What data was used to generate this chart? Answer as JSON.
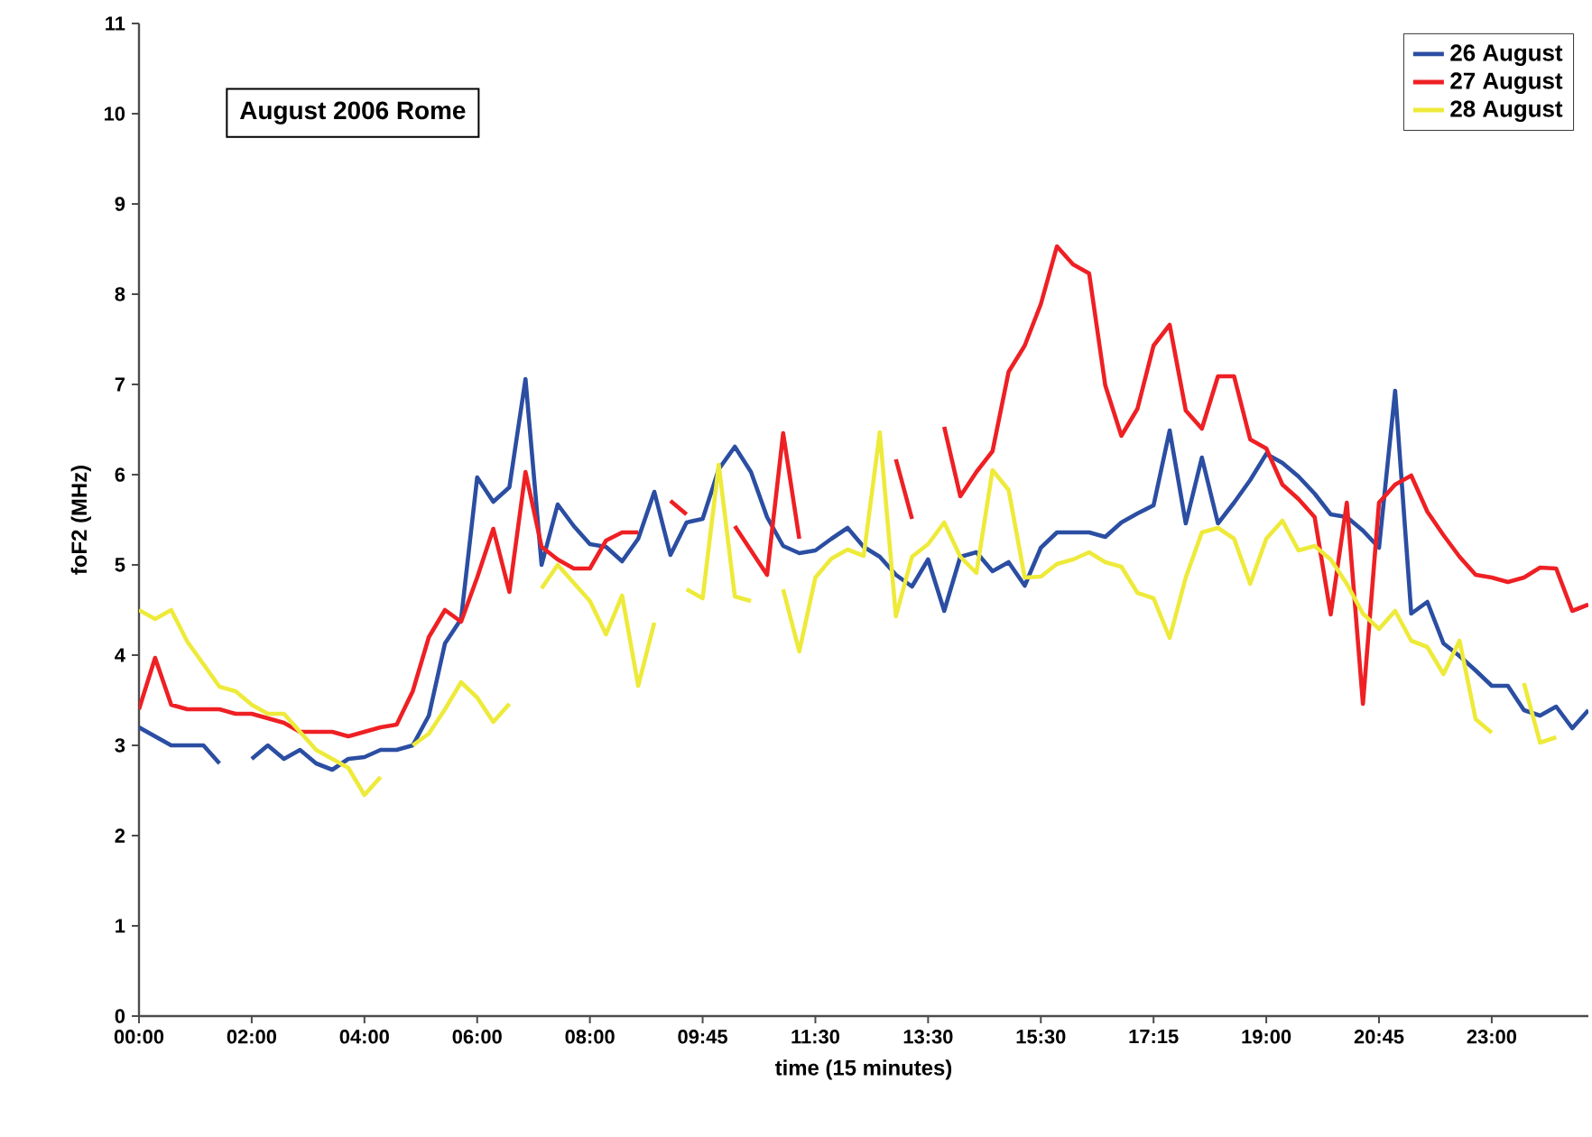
{
  "chart_data": {
    "type": "line",
    "xlabel": "time (15 minutes)",
    "ylabel": "foF2 (MHz)",
    "annotations": [
      "August 2006 Rome"
    ],
    "categories": [
      "00:00",
      null,
      null,
      null,
      null,
      null,
      null,
      "02:00",
      null,
      null,
      null,
      null,
      null,
      null,
      "04:00",
      null,
      null,
      null,
      null,
      null,
      null,
      "06:00",
      null,
      null,
      null,
      null,
      null,
      null,
      "08:00",
      null,
      null,
      null,
      null,
      null,
      null,
      "09:45",
      null,
      null,
      null,
      null,
      null,
      null,
      "11:30",
      null,
      null,
      null,
      null,
      null,
      null,
      "13:30",
      null,
      null,
      null,
      null,
      null,
      null,
      "15:30",
      null,
      null,
      null,
      null,
      null,
      null,
      "17:15",
      null,
      null,
      null,
      null,
      null,
      null,
      "19:00",
      null,
      null,
      null,
      null,
      null,
      null,
      "20:45",
      null,
      null,
      null,
      null,
      null,
      null,
      "23:00",
      null,
      null,
      null,
      null,
      null,
      null
    ],
    "ylim": [
      0,
      11
    ],
    "yticks": [
      0,
      1,
      2,
      3,
      4,
      5,
      6,
      7,
      8,
      9,
      10,
      11
    ],
    "legend": "top right",
    "marker": "none",
    "line_style": "solid",
    "series": [
      {
        "name": "26 August",
        "color": "#2b4ea2",
        "values": [
          3.2,
          3.1,
          3.0,
          3.0,
          3.0,
          2.8,
          null,
          2.85,
          3.0,
          2.85,
          2.95,
          2.8,
          2.73,
          2.85,
          2.87,
          2.95,
          2.95,
          3.0,
          3.33,
          4.13,
          4.4,
          5.97,
          5.7,
          5.86,
          7.06,
          5.0,
          5.67,
          5.43,
          5.23,
          5.2,
          5.04,
          5.29,
          5.81,
          5.11,
          5.47,
          5.51,
          6.06,
          6.31,
          6.03,
          5.53,
          5.21,
          5.13,
          5.16,
          5.29,
          5.41,
          5.2,
          5.09,
          4.89,
          4.76,
          5.06,
          4.49,
          5.09,
          5.14,
          4.93,
          5.03,
          4.77,
          5.19,
          5.36,
          5.36,
          5.36,
          5.31,
          5.47,
          5.57,
          5.66,
          6.49,
          5.46,
          6.19,
          5.46,
          5.69,
          5.94,
          6.23,
          6.13,
          5.98,
          5.79,
          5.56,
          5.53,
          5.38,
          5.19,
          6.93,
          4.46,
          4.59,
          4.13,
          3.99,
          3.83,
          3.66,
          3.66,
          3.39,
          3.33,
          3.43,
          3.19,
          3.39
        ]
      },
      {
        "name": "27 August",
        "color": "#ee2024",
        "values": [
          3.4,
          3.97,
          3.45,
          3.4,
          3.4,
          3.4,
          3.35,
          3.35,
          3.3,
          3.25,
          3.15,
          3.15,
          3.15,
          3.1,
          3.15,
          3.2,
          3.23,
          3.6,
          4.2,
          4.5,
          4.37,
          4.86,
          5.4,
          4.7,
          6.03,
          5.2,
          5.06,
          4.96,
          4.96,
          5.27,
          5.36,
          5.36,
          null,
          5.71,
          5.56,
          null,
          null,
          5.43,
          5.16,
          4.89,
          6.46,
          5.29,
          null,
          null,
          null,
          null,
          null,
          6.17,
          5.51,
          null,
          6.53,
          5.76,
          6.03,
          6.26,
          7.14,
          7.43,
          7.89,
          8.53,
          8.33,
          8.23,
          6.99,
          6.43,
          6.73,
          7.43,
          7.66,
          6.71,
          6.51,
          7.09,
          7.09,
          6.39,
          6.29,
          5.89,
          5.73,
          5.53,
          4.45,
          5.69,
          3.46,
          5.69,
          5.89,
          5.99,
          5.59,
          5.33,
          5.09,
          4.89,
          4.86,
          4.81,
          4.86,
          4.97,
          4.96,
          4.49,
          4.56
        ]
      },
      {
        "name": "28 August",
        "color": "#eeea3a",
        "values": [
          4.5,
          4.4,
          4.5,
          4.15,
          3.9,
          3.65,
          3.6,
          3.45,
          3.35,
          3.35,
          3.15,
          2.95,
          2.85,
          2.75,
          2.45,
          2.65,
          null,
          3.0,
          3.13,
          3.4,
          3.7,
          3.53,
          3.26,
          3.46,
          null,
          4.74,
          5.0,
          4.8,
          4.6,
          4.23,
          4.66,
          3.66,
          4.36,
          null,
          4.73,
          4.63,
          6.11,
          4.65,
          4.6,
          null,
          4.73,
          4.04,
          4.86,
          5.07,
          5.17,
          5.1,
          6.47,
          4.43,
          5.09,
          5.23,
          5.47,
          5.09,
          4.91,
          6.05,
          5.83,
          4.86,
          4.87,
          5.01,
          5.06,
          5.14,
          5.03,
          4.98,
          4.69,
          4.63,
          4.19,
          4.86,
          5.36,
          5.41,
          5.29,
          4.79,
          5.29,
          5.49,
          5.16,
          5.21,
          5.06,
          4.79,
          4.46,
          4.29,
          4.49,
          4.16,
          4.09,
          3.79,
          4.16,
          3.29,
          3.14,
          null,
          3.69,
          3.03,
          3.09,
          null,
          null
        ]
      }
    ]
  }
}
